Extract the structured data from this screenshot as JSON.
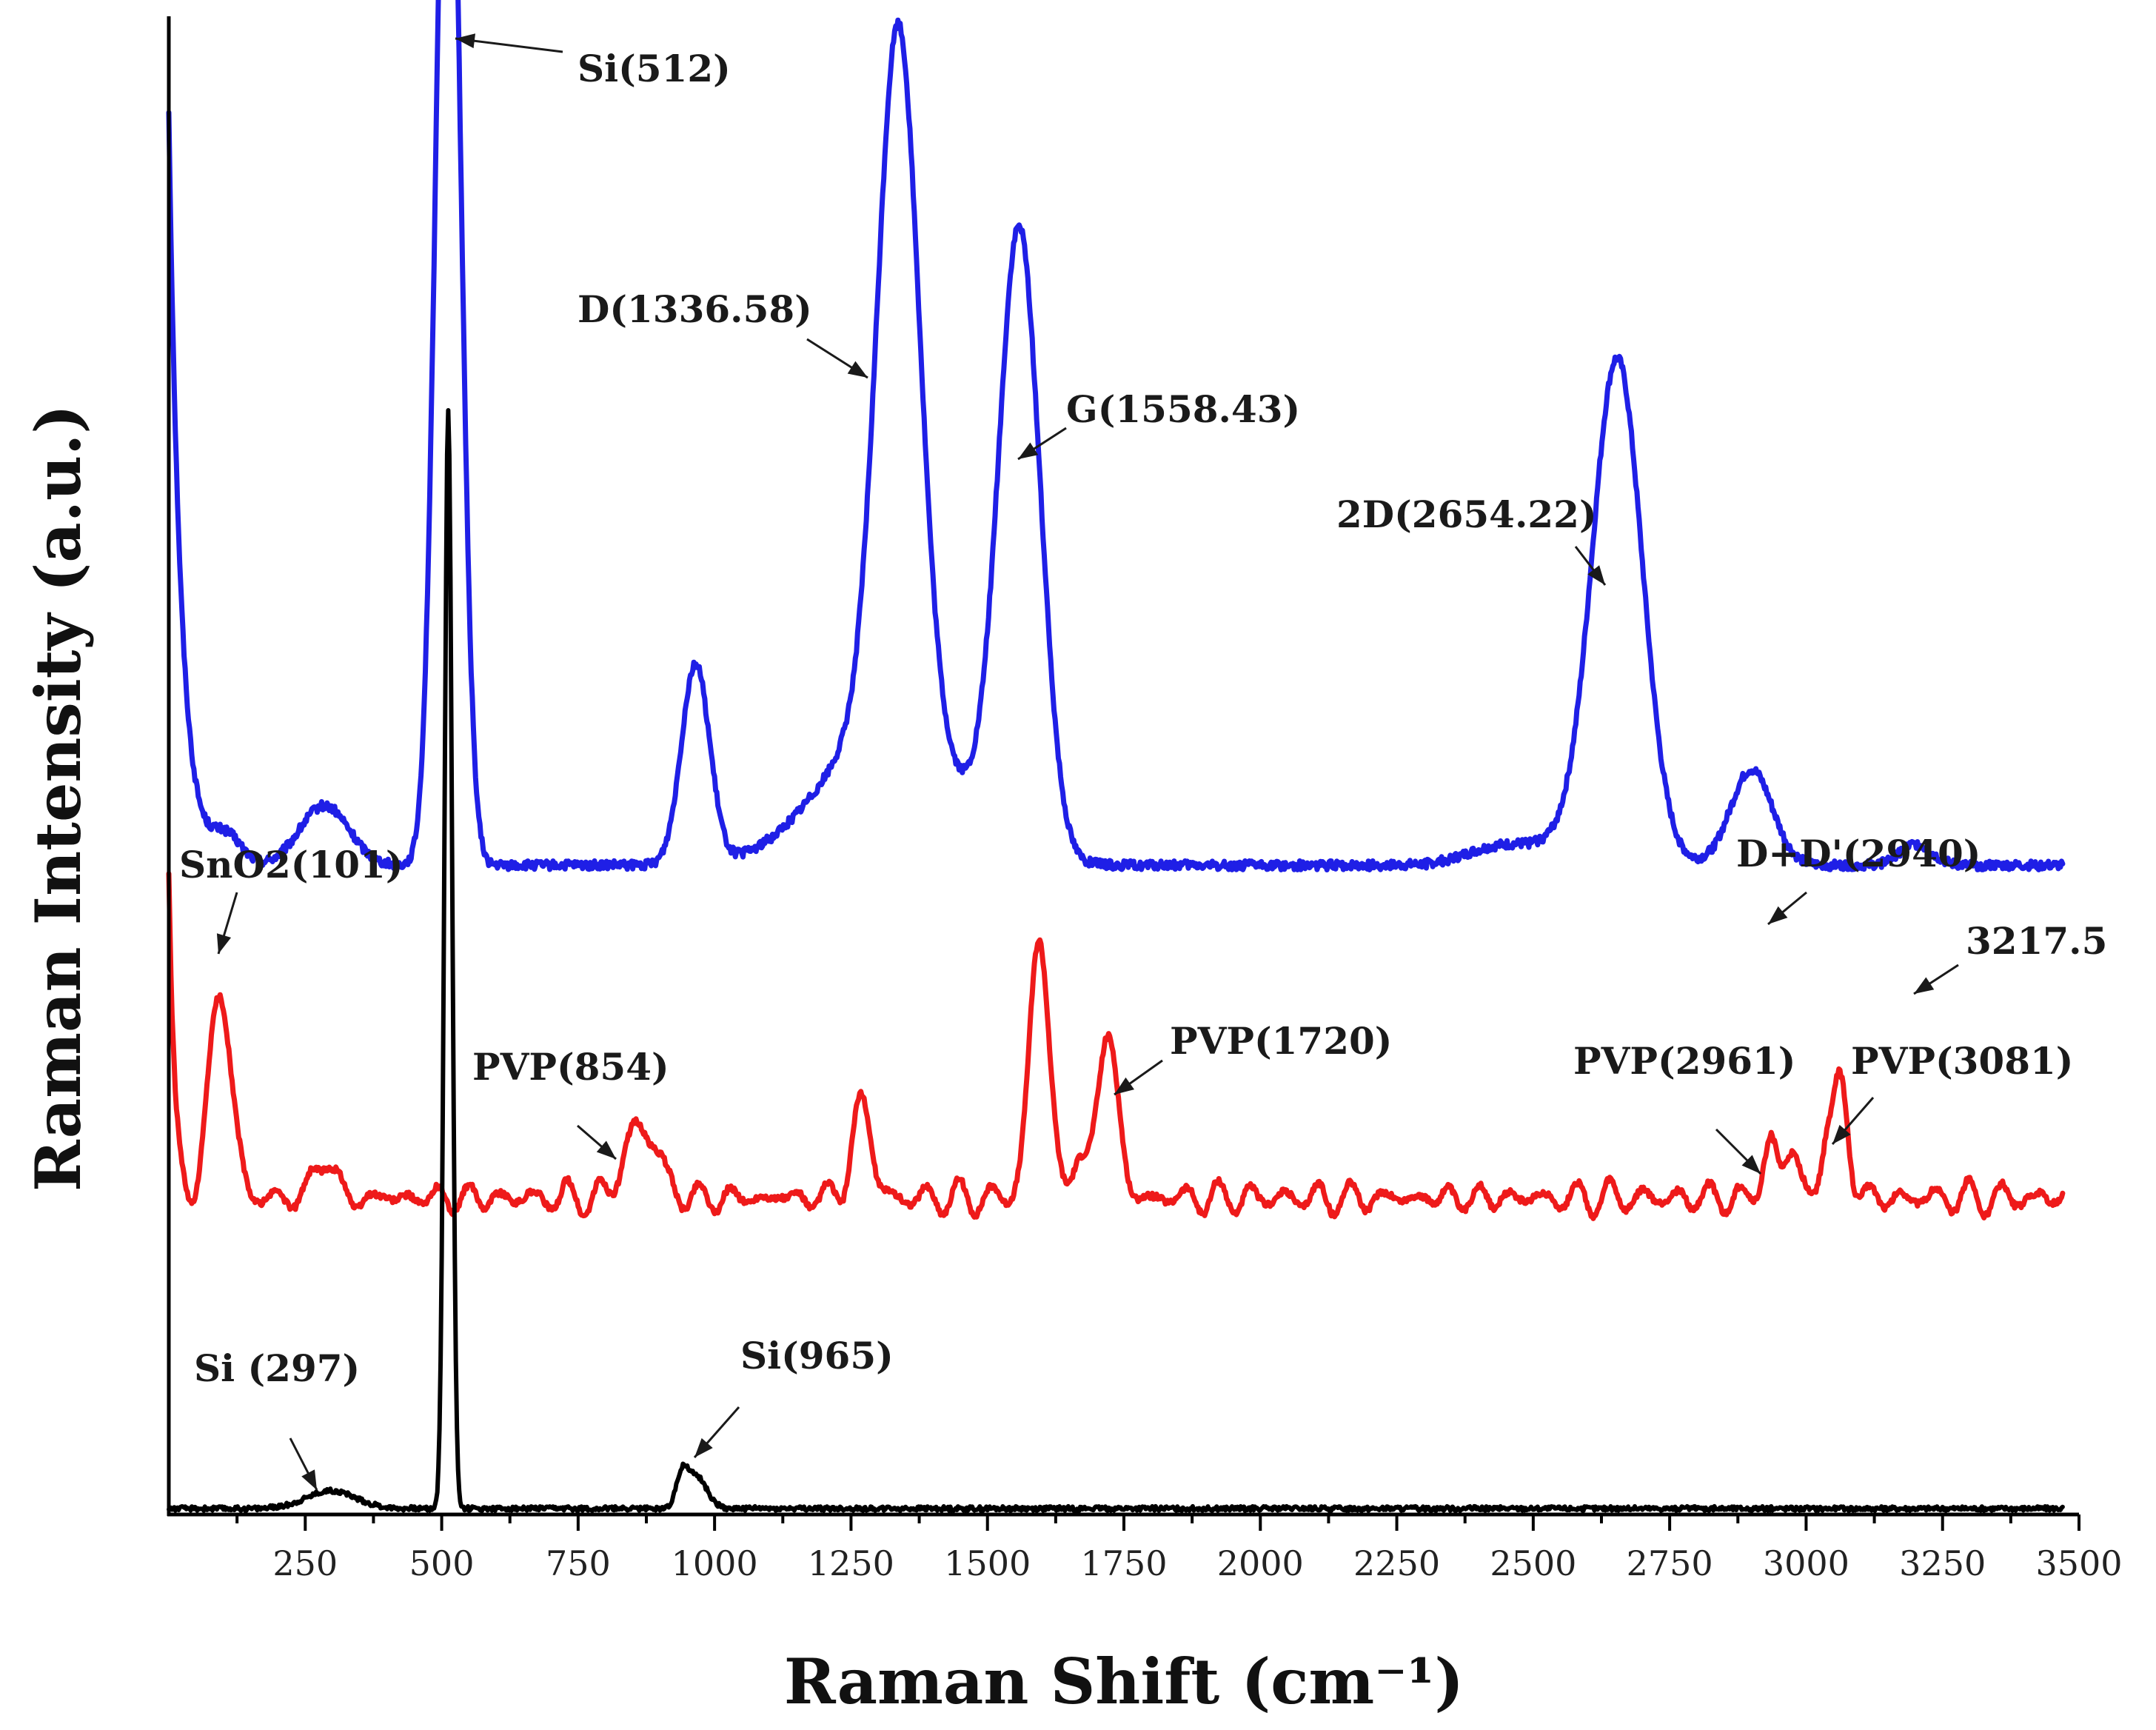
{
  "chart_data": {
    "type": "line",
    "title": "",
    "xlabel": "Raman Shift (cm⁻¹)",
    "ylabel": "Raman Intensity (a.u.)",
    "xlim": [
      0,
      3500
    ],
    "ylim": [
      0,
      1.0
    ],
    "x_ticks": [
      250,
      500,
      750,
      1000,
      1250,
      1500,
      1750,
      2000,
      2250,
      2500,
      2750,
      3000,
      3250,
      3500
    ],
    "y_ticks": [],
    "grid": false,
    "legend": null,
    "series": [
      {
        "name": "blue",
        "color": "#1f1fe6",
        "baseline": 0.435,
        "start": 0.94,
        "startDecay": 22,
        "peaks": [
          {
            "x": 105,
            "h": 0.019,
            "w": 28
          },
          {
            "x": 285,
            "h": 0.04,
            "w": 45
          },
          {
            "x": 512,
            "h": 0.815,
            "w": 22
          },
          {
            "x": 965,
            "h": 0.134,
            "w": 26
          },
          {
            "x": 1320,
            "h": 0.095,
            "w": 120
          },
          {
            "x": 1336.58,
            "h": 0.47,
            "w": 38
          },
          {
            "x": 1558.43,
            "h": 0.415,
            "w": 38
          },
          {
            "x": 2430,
            "h": 0.01,
            "w": 60
          },
          {
            "x": 2654.22,
            "h": 0.325,
            "w": 45
          },
          {
            "x": 2600,
            "h": 0.018,
            "w": 90
          },
          {
            "x": 2900,
            "h": 0.064,
            "w": 38
          },
          {
            "x": 3200,
            "h": 0.014,
            "w": 30
          }
        ],
        "noise": 0.003
      },
      {
        "name": "red",
        "color": "#ee1a1a",
        "baseline": 0.215,
        "start": 0.43,
        "startDecay": 10,
        "peaks": [
          {
            "x": 95,
            "h": 0.14,
            "w": 20
          },
          {
            "x": 285,
            "h": 0.03,
            "w": 16
          },
          {
            "x": 854,
            "h": 0.045,
            "w": 22
          },
          {
            "x": 895,
            "h": 0.025,
            "w": 18
          },
          {
            "x": 1270,
            "h": 0.062,
            "w": 18
          },
          {
            "x": 1595,
            "h": 0.175,
            "w": 18
          },
          {
            "x": 1665,
            "h": 0.03,
            "w": 12
          },
          {
            "x": 1720,
            "h": 0.115,
            "w": 18
          },
          {
            "x": 2935,
            "h": 0.04,
            "w": 12
          },
          {
            "x": 2975,
            "h": 0.03,
            "w": 14
          },
          {
            "x": 3035,
            "h": 0.028,
            "w": 10
          },
          {
            "x": 3062,
            "h": 0.075,
            "w": 15
          }
        ],
        "ripple": 0.011,
        "noise": 0.002
      },
      {
        "name": "black",
        "color": "#000000",
        "baseline": 0.004,
        "start": 0.004,
        "startDecay": 10,
        "peaks": [
          {
            "x": 297,
            "h": 0.012,
            "w": 45
          },
          {
            "x": 512,
            "h": 0.735,
            "w": 7
          },
          {
            "x": 940,
            "h": 0.018,
            "w": 10
          },
          {
            "x": 965,
            "h": 0.022,
            "w": 20
          }
        ],
        "noise": 0.0015
      }
    ],
    "annotations": [
      {
        "label": "Si(512)",
        "x": 512,
        "y": 1.0
      },
      {
        "label": "D(1336.58)",
        "x": 1336.58,
        "y": 0.908
      },
      {
        "label": "G(1558.43)",
        "x": 1558.43,
        "y": 0.852
      },
      {
        "label": "2D(2654.22)",
        "x": 2654.22,
        "y": 0.762
      },
      {
        "label": "SnO2(101)",
        "x": 101,
        "y": 0.455
      },
      {
        "label": "D+D'(2940)",
        "x": 2940,
        "y": 0.5
      },
      {
        "label": "3217.5",
        "x": 3217.5,
        "y": 0.45
      },
      {
        "label": "PVP(854)",
        "x": 854,
        "y": 0.262
      },
      {
        "label": "PVP(1720)",
        "x": 1720,
        "y": 0.332
      },
      {
        "label": "PVP(2961)",
        "x": 2961,
        "y": 0.255
      },
      {
        "label": "PVP(3081)",
        "x": 3081,
        "y": 0.29
      },
      {
        "label": "Si (297)",
        "x": 297,
        "y": 0.017
      },
      {
        "label": "Si(965)",
        "x": 965,
        "y": 0.03
      }
    ]
  }
}
